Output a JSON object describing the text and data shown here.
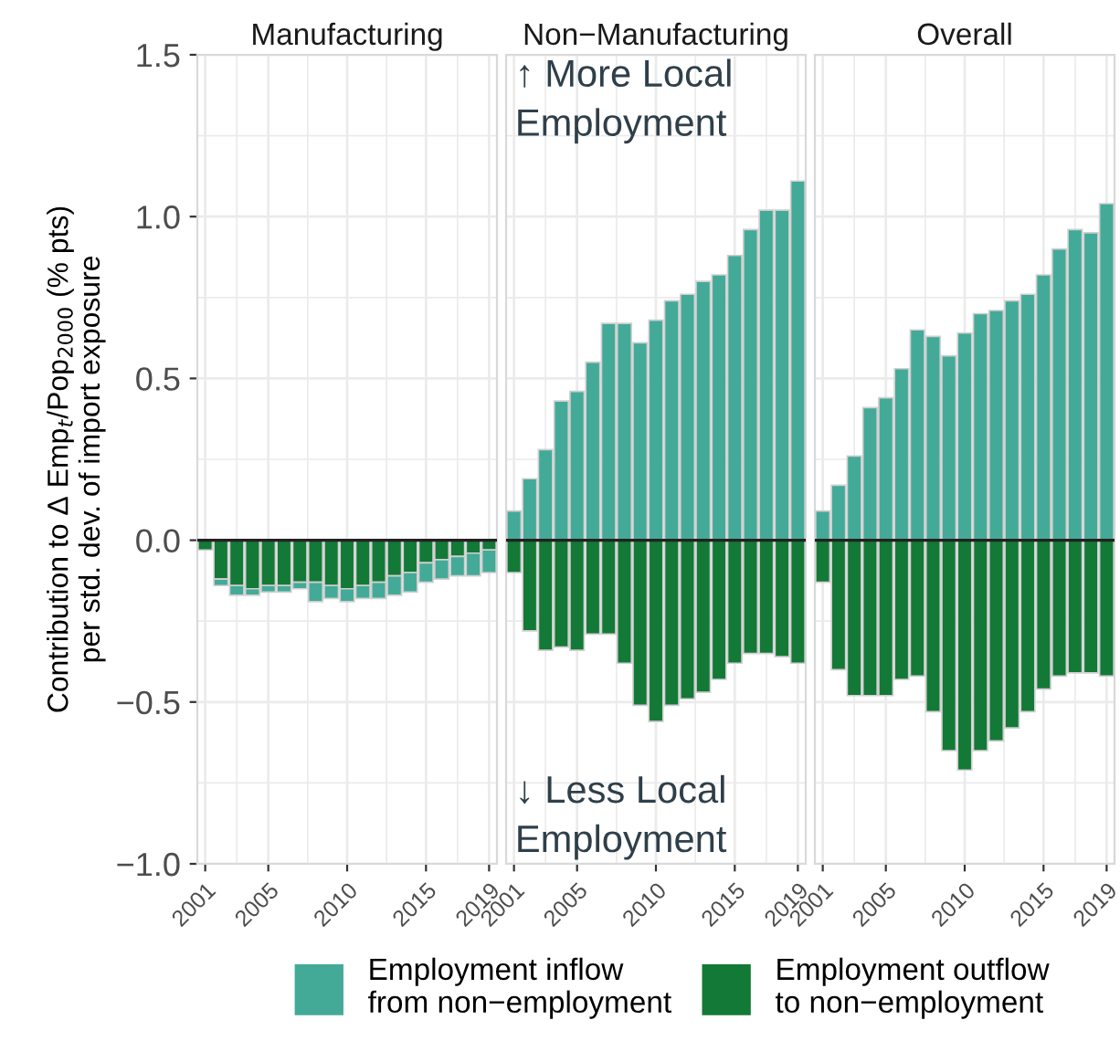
{
  "chart_data": [
    {
      "type": "bar",
      "title": "Manufacturing",
      "ylabel": "Contribution to Δ Emp$_{t}$/Pop$_{2000}$ (% pts)\nper std. dev. of import exposure",
      "stacked": true,
      "grid": true,
      "legend": "bottom",
      "x": [
        2001,
        2002,
        2003,
        2004,
        2005,
        2006,
        2007,
        2008,
        2009,
        2010,
        2011,
        2012,
        2013,
        2014,
        2015,
        2016,
        2017,
        2018,
        2019
      ],
      "xlim": [
        2000.5,
        2019.5
      ],
      "xticks": [
        2001,
        2005,
        2010,
        2015,
        2019
      ],
      "ylim": [
        -1.0,
        1.5
      ],
      "yticks": [
        {
          "value": -1.0,
          "label": "−1.0"
        },
        {
          "value": -0.5,
          "label": "−0.5"
        },
        {
          "value": 0,
          "label": "0.0"
        },
        {
          "value": 0.5,
          "label": "0.5"
        },
        {
          "value": 1.0,
          "label": "1.0"
        },
        {
          "value": 1.5,
          "label": "1.5"
        }
      ],
      "series": [
        {
          "name": "Employment outflow\nto non−employment",
          "color": "#137936",
          "values": [
            -0.03,
            -0.12,
            -0.14,
            -0.15,
            -0.14,
            -0.14,
            -0.13,
            -0.13,
            -0.14,
            -0.15,
            -0.14,
            -0.13,
            -0.11,
            -0.1,
            -0.07,
            -0.06,
            -0.05,
            -0.04,
            -0.03
          ]
        },
        {
          "name": "Employment inflow\nfrom non−employment",
          "color": "#43aa98",
          "values": [
            null,
            -0.02,
            -0.03,
            -0.02,
            -0.02,
            -0.02,
            -0.02,
            -0.06,
            -0.04,
            -0.04,
            -0.04,
            -0.05,
            -0.06,
            -0.06,
            -0.06,
            -0.06,
            -0.06,
            -0.07,
            -0.07
          ]
        }
      ]
    },
    {
      "type": "bar",
      "title": "Non−Manufacturing",
      "stacked": true,
      "grid": true,
      "tick_labels": "x",
      "annotations": [
        "↑ More Local\nEmployment",
        "↓ Less Local\nEmployment"
      ],
      "x": [
        2001,
        2002,
        2003,
        2004,
        2005,
        2006,
        2007,
        2008,
        2009,
        2010,
        2011,
        2012,
        2013,
        2014,
        2015,
        2016,
        2017,
        2018,
        2019
      ],
      "xlim": [
        2000.5,
        2019.5
      ],
      "xticks": [
        2001,
        2005,
        2010,
        2015,
        2019
      ],
      "ylim": [
        -1.0,
        1.5
      ],
      "yticks": [
        -1.0,
        -0.5,
        0,
        0.5,
        1.0,
        1.5
      ],
      "series": [
        {
          "name": "Employment inflow\nfrom non−employment",
          "color": "#43aa98",
          "values": [
            0.09,
            0.19,
            0.28,
            0.43,
            0.46,
            0.55,
            0.67,
            0.67,
            0.61,
            0.68,
            0.74,
            0.76,
            0.8,
            0.82,
            0.88,
            0.96,
            1.02,
            1.02,
            1.11
          ]
        },
        {
          "name": "Employment outflow\nto non−employment",
          "color": "#137936",
          "values": [
            -0.1,
            -0.28,
            -0.34,
            -0.33,
            -0.34,
            -0.29,
            -0.29,
            -0.38,
            -0.51,
            -0.56,
            -0.51,
            -0.49,
            -0.47,
            -0.43,
            -0.38,
            -0.35,
            -0.35,
            -0.36,
            -0.38
          ]
        }
      ]
    },
    {
      "type": "bar",
      "title": "Overall",
      "stacked": true,
      "grid": true,
      "tick_labels": "x",
      "x": [
        2001,
        2002,
        2003,
        2004,
        2005,
        2006,
        2007,
        2008,
        2009,
        2010,
        2011,
        2012,
        2013,
        2014,
        2015,
        2016,
        2017,
        2018,
        2019
      ],
      "xlim": [
        2000.5,
        2019.5
      ],
      "xticks": [
        2001,
        2005,
        2010,
        2015,
        2019
      ],
      "ylim": [
        -1.0,
        1.5
      ],
      "yticks": [
        -1.0,
        -0.5,
        0,
        0.5,
        1.0,
        1.5
      ],
      "series": [
        {
          "name": "Employment inflow\nfrom non−employment",
          "color": "#43aa98",
          "values": [
            0.09,
            0.17,
            0.26,
            0.41,
            0.44,
            0.53,
            0.65,
            0.63,
            0.57,
            0.64,
            0.7,
            0.71,
            0.74,
            0.76,
            0.82,
            0.9,
            0.96,
            0.95,
            1.04
          ]
        },
        {
          "name": "Employment outflow\nto non−employment",
          "color": "#137936",
          "values": [
            -0.13,
            -0.4,
            -0.48,
            -0.48,
            -0.48,
            -0.43,
            -0.42,
            -0.53,
            -0.65,
            -0.71,
            -0.65,
            -0.62,
            -0.58,
            -0.53,
            -0.46,
            -0.42,
            -0.41,
            -0.41,
            -0.42
          ]
        }
      ]
    }
  ]
}
